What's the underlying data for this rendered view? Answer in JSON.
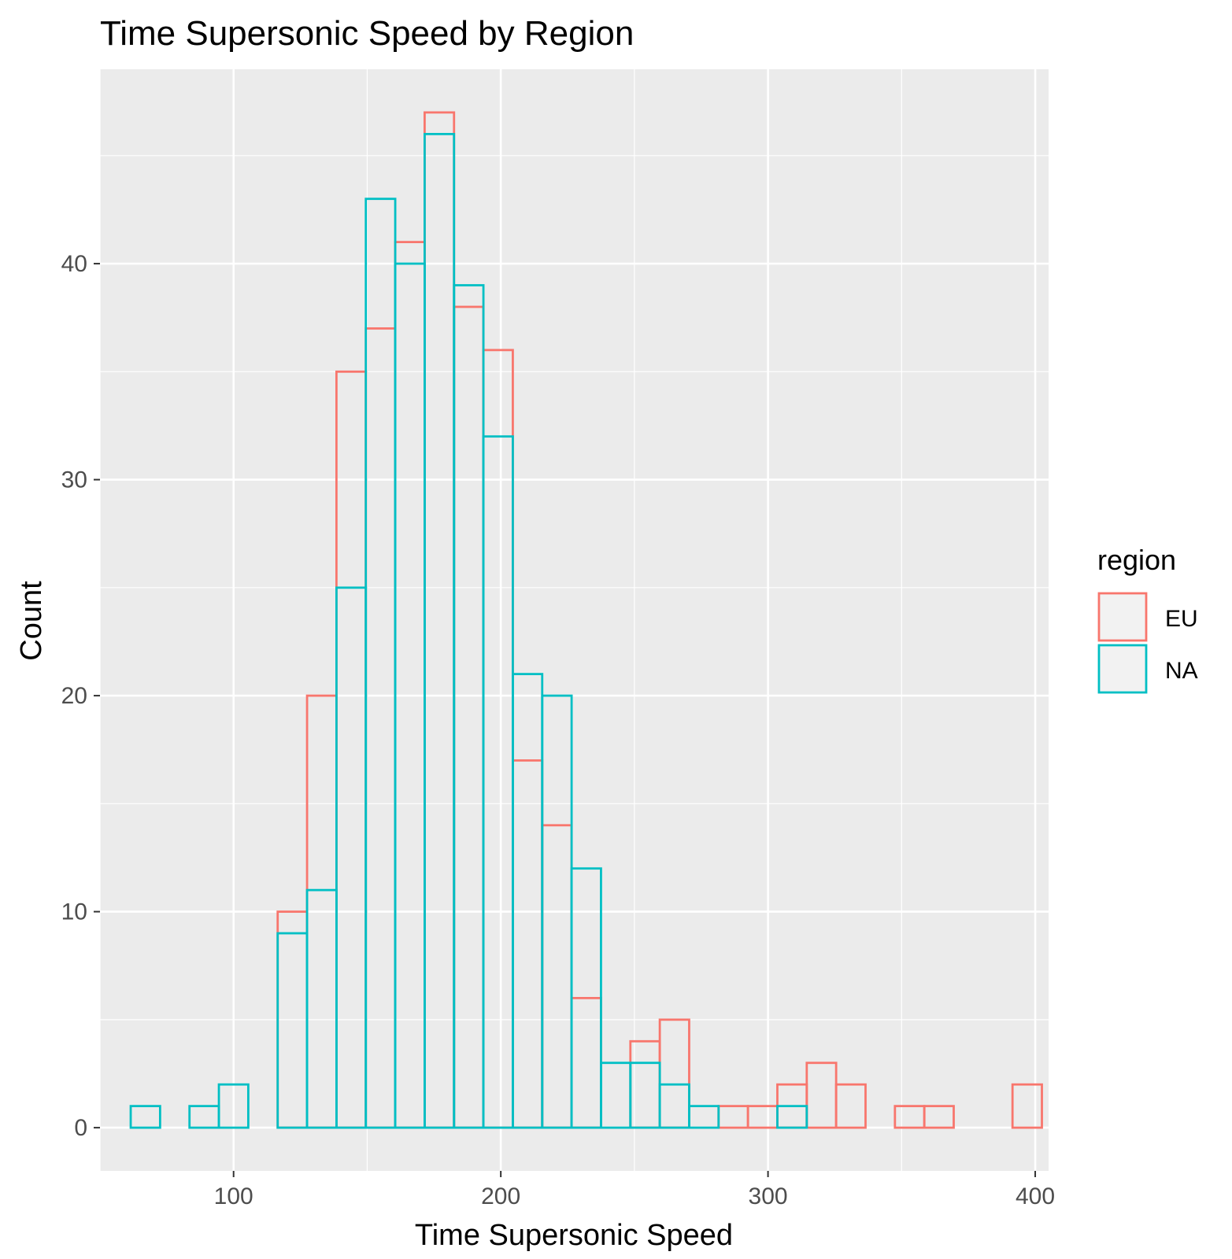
{
  "chart_data": {
    "type": "bar",
    "title": "Time Supersonic Speed by Region",
    "xlabel": "Time Supersonic Speed",
    "ylabel": "Count",
    "xlim": [
      50,
      405
    ],
    "ylim": [
      -2,
      49
    ],
    "x_ticks": [
      100,
      200,
      300,
      400
    ],
    "y_ticks": [
      0,
      10,
      20,
      30,
      40
    ],
    "grid": true,
    "legend": {
      "title": "region",
      "position": "right"
    },
    "bin_start": 61.5,
    "bin_width": 11,
    "series": [
      {
        "name": "EU",
        "color": "#F8766D",
        "values": [
          0,
          0,
          0,
          0,
          0,
          10,
          20,
          35,
          37,
          41,
          47,
          38,
          36,
          17,
          14,
          6,
          0,
          4,
          5,
          0,
          1,
          1,
          2,
          3,
          2,
          0,
          1,
          1,
          0,
          0,
          2
        ]
      },
      {
        "name": "NA",
        "color": "#00BFC4",
        "values": [
          1,
          0,
          1,
          2,
          0,
          9,
          11,
          25,
          43,
          40,
          46,
          39,
          32,
          21,
          20,
          12,
          3,
          3,
          2,
          1,
          0,
          0,
          1,
          0,
          0,
          0,
          0,
          0,
          0,
          0,
          0
        ]
      }
    ]
  }
}
